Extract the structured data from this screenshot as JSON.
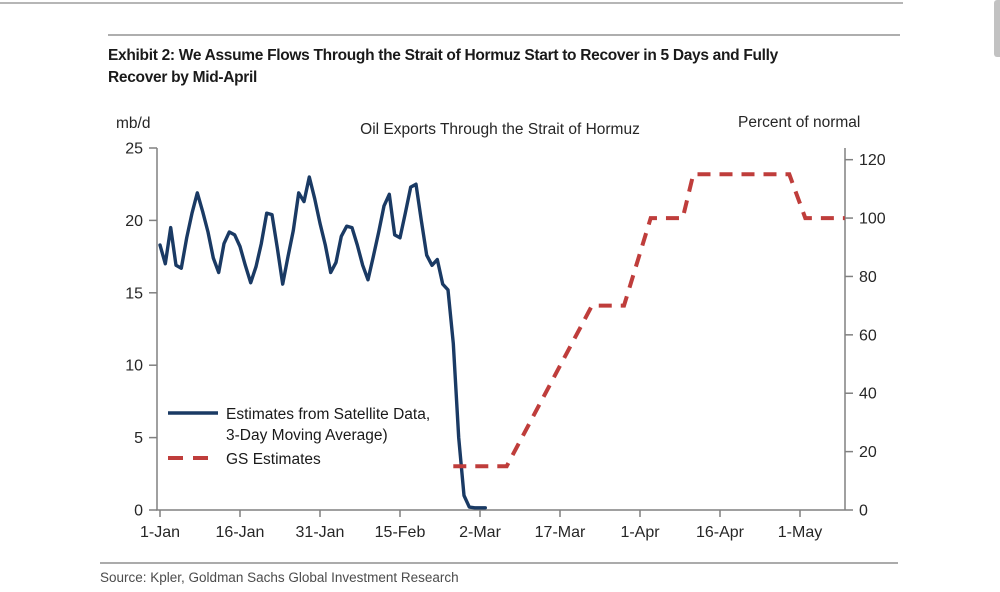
{
  "header": {
    "exhibit_title_line1": "Exhibit 2: We Assume Flows Through the Strait of Hormuz Start to Recover in 5 Days and Fully",
    "exhibit_title_line2": "Recover by Mid-April"
  },
  "footer": {
    "source": "Source: Kpler, Goldman Sachs Global Investment Research"
  },
  "chart_data": {
    "type": "line",
    "title": "Oil Exports Through the Strait of Hormuz",
    "grid": "off",
    "legend_position": "inside-lower-left",
    "left_axis": {
      "label": "mb/d",
      "min": 0,
      "max": 25,
      "ticks": [
        0,
        5,
        10,
        15,
        20,
        25
      ]
    },
    "right_axis": {
      "label": "Percent of normal",
      "min": 0,
      "max": 124,
      "ticks": [
        0,
        20,
        40,
        60,
        80,
        100,
        120
      ]
    },
    "x_axis": {
      "tick_labels": [
        "1-Jan",
        "16-Jan",
        "31-Jan",
        "15-Feb",
        "2-Mar",
        "17-Mar",
        "1-Apr",
        "16-Apr",
        "1-May"
      ],
      "tick_interval_days": 15,
      "start_day": 0,
      "end_day": 128.4
    },
    "series": [
      {
        "name": "Estimates from Satellite Data, 3-Day Moving Average)",
        "axis": "left",
        "style": "solid",
        "color": "#1a3a64",
        "start_date": "1-Jan",
        "frequency": "daily",
        "values": [
          18.3,
          17.0,
          19.5,
          16.9,
          16.7,
          18.8,
          20.5,
          21.9,
          20.6,
          19.2,
          17.4,
          16.4,
          18.4,
          19.2,
          19.0,
          18.2,
          16.9,
          15.7,
          16.8,
          18.4,
          20.5,
          20.4,
          18.1,
          15.6,
          17.5,
          19.3,
          21.9,
          21.3,
          23.0,
          21.5,
          19.8,
          18.3,
          16.4,
          17.1,
          18.9,
          19.6,
          19.5,
          18.3,
          16.9,
          15.9,
          17.5,
          19.2,
          21.0,
          21.8,
          19.0,
          18.8,
          20.5,
          22.3,
          22.5,
          20.0,
          17.6,
          16.9,
          17.3,
          15.6,
          15.2,
          11.5,
          5.0,
          1.0,
          0.2,
          0.15,
          0.15,
          0.15
        ]
      },
      {
        "name": "GS Estimates",
        "axis": "right",
        "style": "dashed",
        "color": "#bf3d3b",
        "points": [
          {
            "day": 55,
            "date": "25-Feb",
            "pct": 15
          },
          {
            "day": 65,
            "date": "7-Mar",
            "pct": 15
          },
          {
            "day": 81,
            "date": "23-Mar",
            "pct": 70
          },
          {
            "day": 87,
            "date": "29-Mar",
            "pct": 70
          },
          {
            "day": 92,
            "date": "3-Apr",
            "pct": 100
          },
          {
            "day": 98,
            "date": "9-Apr",
            "pct": 100
          },
          {
            "day": 100,
            "date": "11-Apr",
            "pct": 115
          },
          {
            "day": 118,
            "date": "29-Apr",
            "pct": 115
          },
          {
            "day": 121,
            "date": "2-May",
            "pct": 100
          },
          {
            "day": 128.4,
            "date": "9-May",
            "pct": 100
          }
        ]
      }
    ],
    "legend": {
      "items": [
        {
          "series": "satellite",
          "lines": [
            "Estimates from Satellite Data,",
            "3-Day Moving Average)"
          ]
        },
        {
          "series": "gs",
          "lines": [
            "GS Estimates"
          ]
        }
      ]
    }
  }
}
